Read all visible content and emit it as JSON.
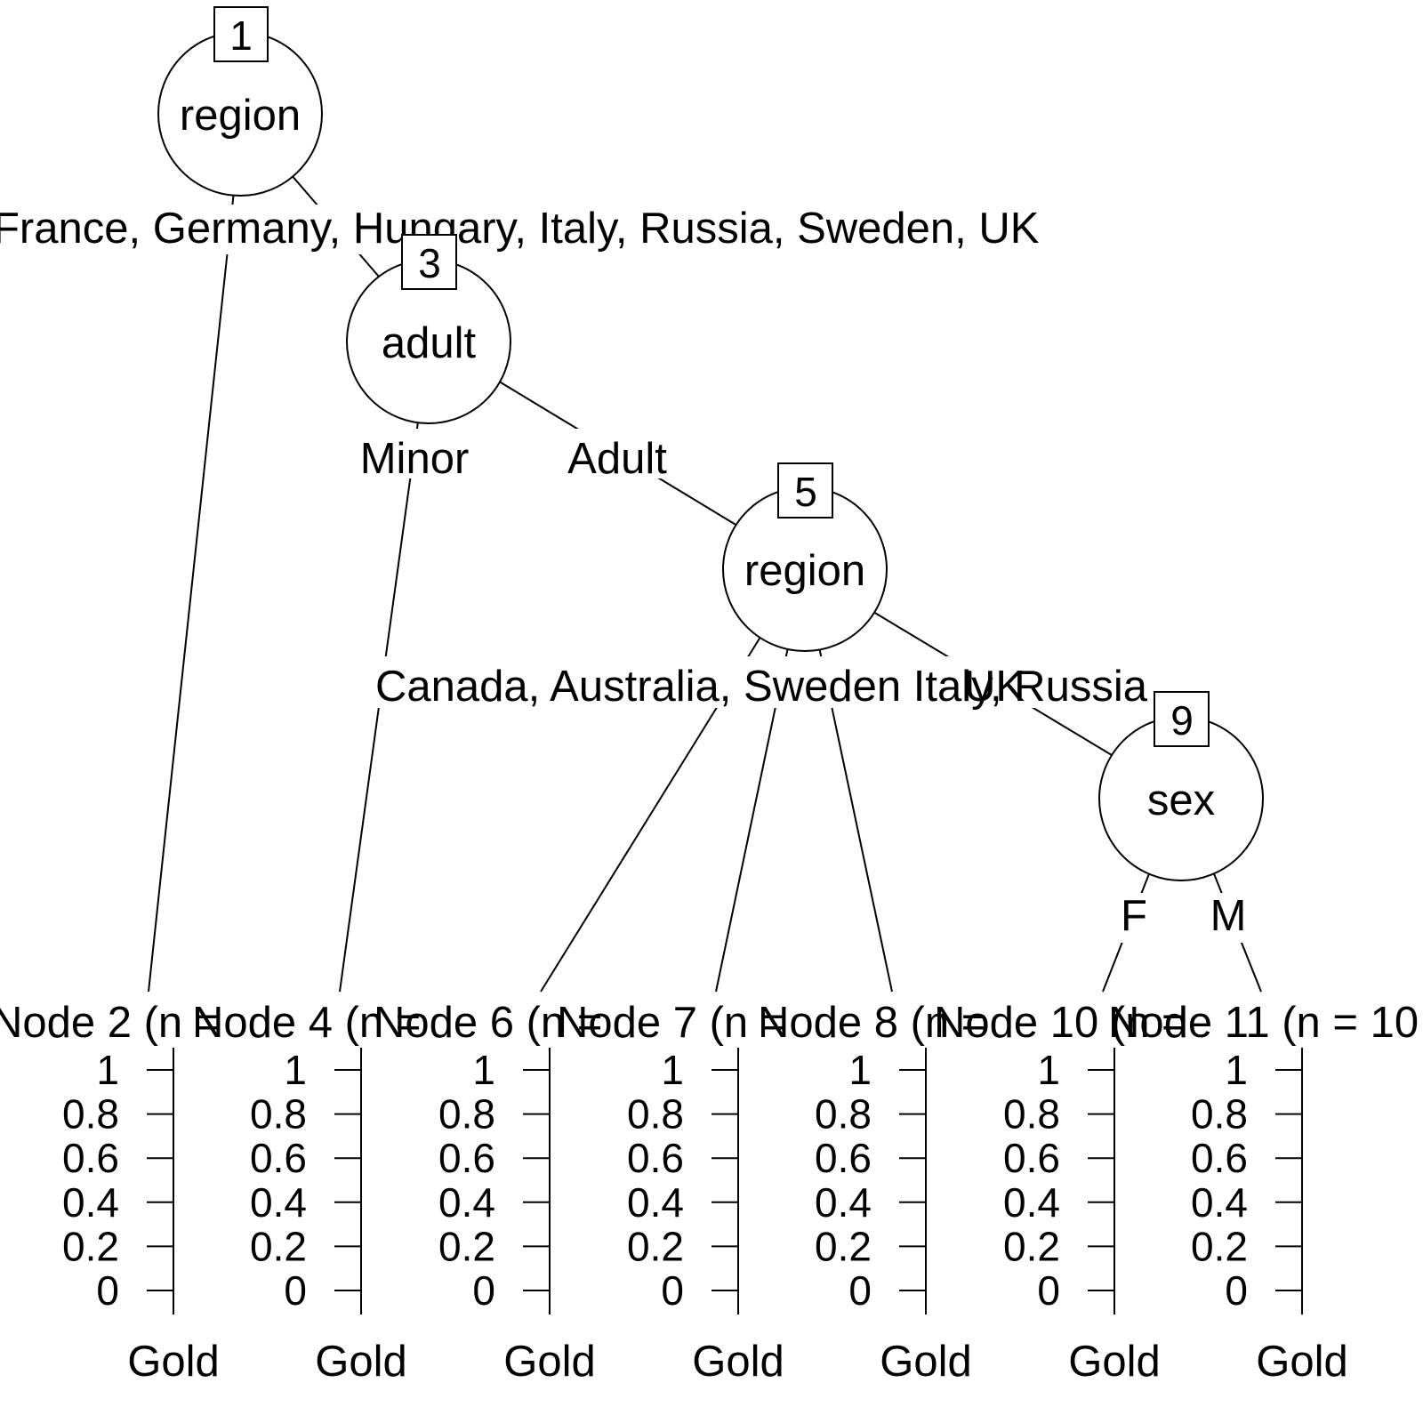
{
  "tree": {
    "inner_nodes": [
      {
        "id": "1",
        "var": "region"
      },
      {
        "id": "3",
        "var": "adult"
      },
      {
        "id": "5",
        "var": "region"
      },
      {
        "id": "9",
        "var": "sex"
      }
    ],
    "edge_labels": [
      {
        "text": "France, Germany, Hungary, Italy, Russia, Sweden, UK"
      },
      {
        "text": "Minor"
      },
      {
        "text": "Adult"
      },
      {
        "text": "Canada, Australia, Sweden Italy, Russia"
      },
      {
        "text": "UK"
      },
      {
        "text": "F"
      },
      {
        "text": "M"
      }
    ],
    "terminal_nodes": [
      {
        "title": "Node 2 (n ="
      },
      {
        "title": "Node 4 (n ="
      },
      {
        "title": "Node 6 (n ="
      },
      {
        "title": "Node 7 (n ="
      },
      {
        "title": "Node 8 (n ="
      },
      {
        "title": "Node 10 (n ="
      },
      {
        "title": "Node 11 (n = 10"
      }
    ],
    "y_ticks": [
      "1",
      "0.8",
      "0.6",
      "0.4",
      "0.2",
      "0"
    ],
    "category_label": "Gold"
  }
}
